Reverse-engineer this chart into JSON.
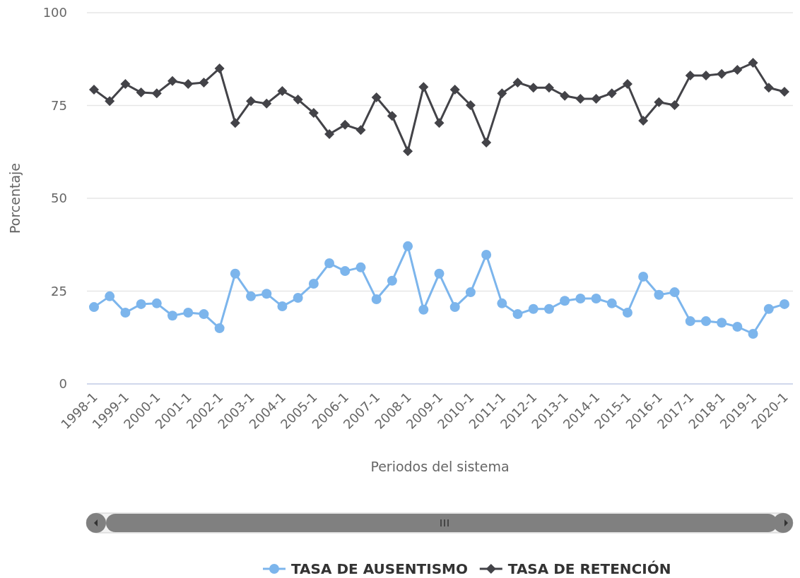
{
  "chart_data": {
    "type": "line",
    "xlabel": "Periodos del sistema",
    "ylabel": "Porcentaje",
    "categories": [
      "1998-1",
      null,
      "1999-1",
      null,
      "2000-1",
      null,
      "2001-1",
      null,
      "2002-1",
      null,
      "2003-1",
      null,
      "2004-1",
      null,
      "2005-1",
      null,
      "2006-1",
      null,
      "2007-1",
      null,
      "2008-1",
      null,
      "2009-1",
      null,
      "2010-1",
      null,
      "2011-1",
      null,
      "2012-1",
      null,
      "2013-1",
      null,
      "2014-1",
      null,
      "2015-1",
      null,
      "2016-1",
      null,
      "2017-1",
      null,
      "2018-1",
      null,
      "2019-1",
      null,
      "2020-1"
    ],
    "series": [
      {
        "name": "TASA DE AUSENTISMO",
        "color": "#7cb5ec",
        "marker": "circle",
        "values": [
          20.7,
          23.6,
          19.2,
          21.5,
          21.7,
          18.4,
          19.2,
          18.8,
          15.0,
          29.7,
          23.6,
          24.3,
          20.9,
          23.2,
          27.0,
          32.5,
          30.4,
          31.4,
          22.8,
          27.8,
          37.1,
          20.0,
          29.7,
          20.7,
          24.7,
          34.8,
          21.7,
          18.8,
          20.2,
          20.2,
          22.4,
          23.0,
          23.0,
          21.7,
          19.2,
          28.9,
          24.0,
          24.7,
          16.9,
          16.9,
          16.5,
          15.4,
          13.5,
          20.2,
          21.5
        ]
      },
      {
        "name": "TASA DE RETENCIÓN",
        "color": "#434348",
        "marker": "diamond",
        "values": [
          79.3,
          76.2,
          80.8,
          78.5,
          78.3,
          81.6,
          80.8,
          81.2,
          85.0,
          70.3,
          76.2,
          75.5,
          78.9,
          76.6,
          73.0,
          67.3,
          69.8,
          68.4,
          77.2,
          72.2,
          62.7,
          80.0,
          70.3,
          79.3,
          75.1,
          65.0,
          78.3,
          81.2,
          79.8,
          79.8,
          77.6,
          76.8,
          76.8,
          78.3,
          80.8,
          70.9,
          75.9,
          75.1,
          83.1,
          83.1,
          83.5,
          84.6,
          86.5,
          79.8,
          78.7
        ]
      }
    ],
    "ylim": [
      0,
      100
    ],
    "yticks": [
      0,
      25,
      50,
      75,
      100
    ],
    "grid": "y",
    "legend": "bottom"
  }
}
